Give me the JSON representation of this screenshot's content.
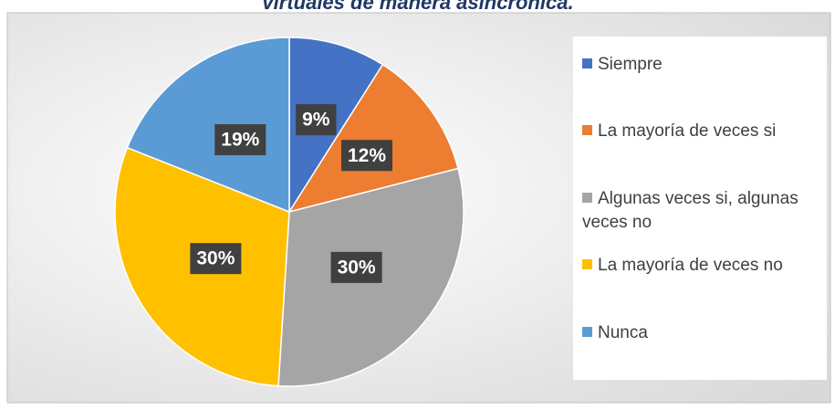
{
  "chart_data": {
    "type": "pie",
    "title": "virtuales de manera asincrónica.",
    "categories": [
      "Siempre",
      "La mayoría de veces si",
      "Algunas veces si, algunas veces no",
      "La mayoría de veces no",
      "Nunca"
    ],
    "values": [
      9,
      12,
      30,
      30,
      19
    ],
    "value_labels": [
      "9%",
      "12%",
      "30%",
      "30%",
      "19%"
    ],
    "colors": [
      "#4472c4",
      "#ed7d31",
      "#a5a5a5",
      "#ffc000",
      "#5b9bd5"
    ],
    "legend": "right"
  }
}
